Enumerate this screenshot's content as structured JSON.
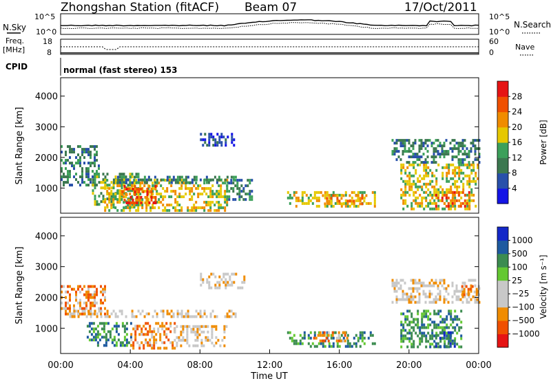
{
  "header": {
    "station": "Zhongshan Station (fitACF)",
    "beam": "Beam 07",
    "date": "17/Oct/2011"
  },
  "top_panels": {
    "nsky_label": "N.Sky",
    "nsearch_label": "N.Search",
    "freq_label_line1": "Freq.",
    "freq_label_line2": "[MHz]",
    "nave_label": "Nave",
    "cpid_label": "CPID",
    "noise_ticks": [
      "10^5",
      "10^0"
    ],
    "freq_ticks": [
      "18",
      "8"
    ],
    "nave_ticks": [
      "60",
      "0"
    ],
    "cpid_text": "normal (fast stereo) 153"
  },
  "colors": {
    "power": [
      "#1414e6",
      "#2850aa",
      "#3c7850",
      "#3ca05a",
      "#e6c800",
      "#f08c00",
      "#f05000",
      "#e61414"
    ],
    "velocity": [
      "#e61414",
      "#f05000",
      "#f08c00",
      "#c8c8c8",
      "#c8c8c8",
      "#64c832",
      "#3c8c50",
      "#1e5aa0",
      "#1428c8"
    ],
    "line_black": "#000000"
  },
  "chart_data": [
    {
      "type": "heatmap",
      "title": "Power",
      "ylabel": "Slant Range [km]",
      "xlabel": "",
      "ylim": [
        180,
        4600
      ],
      "y_ticks": [
        1000,
        2000,
        3000,
        4000
      ],
      "colorbar_label": "Power [dB]",
      "colorbar_ticks": [
        "4",
        "8",
        "12",
        "16",
        "20",
        "24",
        "28"
      ],
      "colorbar_range": [
        0,
        32
      ],
      "regions": [
        {
          "t0": 0.0,
          "t1": 2.2,
          "r0": 1100,
          "r1": 2400,
          "level": 2
        },
        {
          "t0": 1.8,
          "t1": 4.5,
          "r0": 400,
          "r1": 1500,
          "level": 3
        },
        {
          "t0": 2.5,
          "t1": 9.5,
          "r0": 300,
          "r1": 1300,
          "level": 4
        },
        {
          "t0": 3.5,
          "t1": 5.5,
          "r0": 500,
          "r1": 1100,
          "level": 6
        },
        {
          "t0": 3.0,
          "t1": 10.0,
          "r0": 1150,
          "r1": 1400,
          "level": 2
        },
        {
          "t0": 9.5,
          "t1": 11.0,
          "r0": 600,
          "r1": 1300,
          "level": 2
        },
        {
          "t0": 8.0,
          "t1": 10.0,
          "r0": 2400,
          "r1": 2800,
          "level": 1
        },
        {
          "t0": 13.0,
          "t1": 18.0,
          "r0": 400,
          "r1": 900,
          "level": 4
        },
        {
          "t0": 15.0,
          "t1": 17.5,
          "r0": 500,
          "r1": 800,
          "level": 5
        },
        {
          "t0": 19.5,
          "t1": 24.0,
          "r0": 350,
          "r1": 1800,
          "level": 4
        },
        {
          "t0": 21.5,
          "t1": 23.5,
          "r0": 400,
          "r1": 900,
          "level": 6
        },
        {
          "t0": 19.0,
          "t1": 24.0,
          "r0": 1800,
          "r1": 2600,
          "level": 2
        }
      ]
    },
    {
      "type": "heatmap",
      "title": "Velocity",
      "ylabel": "Slant Range [km]",
      "xlabel": "Time UT",
      "xlim": [
        0,
        24
      ],
      "x_ticks": [
        "00:00",
        "04:00",
        "08:00",
        "12:00",
        "16:00",
        "20:00",
        "00:00"
      ],
      "ylim": [
        180,
        4600
      ],
      "y_ticks": [
        1000,
        2000,
        3000,
        4000
      ],
      "colorbar_label": "Velocity [m s⁻¹]",
      "colorbar_ticks": [
        "1000",
        "500",
        "100",
        "25",
        "−25",
        "−100",
        "−500",
        "−1000"
      ],
      "regions": [
        {
          "t0": 0.0,
          "t1": 2.5,
          "r0": 1500,
          "r1": 2400,
          "level": 2
        },
        {
          "t0": 0.5,
          "t1": 10.0,
          "r0": 1350,
          "r1": 1600,
          "level": 3
        },
        {
          "t0": 1.5,
          "t1": 4.0,
          "r0": 400,
          "r1": 1200,
          "level": 6
        },
        {
          "t0": 4.0,
          "t1": 6.5,
          "r0": 350,
          "r1": 1200,
          "level": 2
        },
        {
          "t0": 6.5,
          "t1": 9.5,
          "r0": 400,
          "r1": 1100,
          "level": 3
        },
        {
          "t0": 8.0,
          "t1": 10.5,
          "r0": 2300,
          "r1": 2800,
          "level": 3
        },
        {
          "t0": 13.0,
          "t1": 18.0,
          "r0": 400,
          "r1": 900,
          "level": 6
        },
        {
          "t0": 14.5,
          "t1": 16.5,
          "r0": 600,
          "r1": 900,
          "level": 2
        },
        {
          "t0": 19.5,
          "t1": 23.0,
          "r0": 350,
          "r1": 1600,
          "level": 6
        },
        {
          "t0": 21.5,
          "t1": 22.8,
          "r0": 400,
          "r1": 900,
          "level": 7
        },
        {
          "t0": 19.0,
          "t1": 24.0,
          "r0": 1800,
          "r1": 2600,
          "level": 3
        },
        {
          "t0": 23.0,
          "t1": 24.0,
          "r0": 2100,
          "r1": 2400,
          "level": 2
        }
      ]
    }
  ]
}
